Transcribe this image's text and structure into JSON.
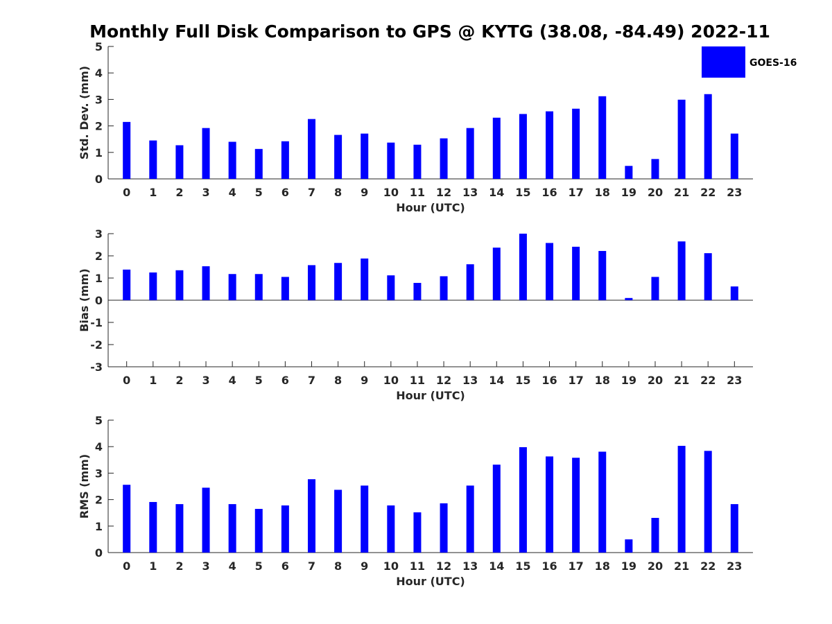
{
  "chart_data": {
    "type": "bar",
    "title": "Monthly Full Disk Comparison to GPS @ KYTG (38.08, -84.49) 2022-11",
    "legend": {
      "entries": [
        "GOES-16"
      ],
      "placement": "top-right"
    },
    "bar_color": "#0000ff",
    "categories": [
      "0",
      "1",
      "2",
      "3",
      "4",
      "5",
      "6",
      "7",
      "8",
      "9",
      "10",
      "11",
      "12",
      "13",
      "14",
      "15",
      "16",
      "17",
      "18",
      "19",
      "20",
      "21",
      "22",
      "23"
    ],
    "panels": [
      {
        "name": "std",
        "xlabel": "Hour (UTC)",
        "ylabel": "Std. Dev. (mm)",
        "ylim": [
          0,
          5
        ],
        "yticks": [
          "0",
          "1",
          "2",
          "3",
          "4",
          "5"
        ],
        "series": [
          {
            "name": "GOES-16",
            "values": [
              2.15,
              1.45,
              1.27,
              1.92,
              1.4,
              1.13,
              1.42,
              2.26,
              1.66,
              1.71,
              1.37,
              1.29,
              1.53,
              1.92,
              2.31,
              2.45,
              2.55,
              2.65,
              3.12,
              0.49,
              0.75,
              2.99,
              3.2,
              1.71
            ]
          }
        ]
      },
      {
        "name": "bias",
        "xlabel": "Hour (UTC)",
        "ylabel": "Bias (mm)",
        "ylim": [
          -3,
          3
        ],
        "yticks": [
          "-3",
          "-2",
          "-1",
          "0",
          "1",
          "2",
          "3"
        ],
        "series": [
          {
            "name": "GOES-16",
            "values": [
              1.38,
              1.25,
              1.35,
              1.53,
              1.18,
              1.18,
              1.05,
              1.58,
              1.68,
              1.88,
              1.12,
              0.78,
              1.08,
              1.62,
              2.37,
              3.0,
              2.58,
              2.41,
              2.22,
              0.1,
              1.05,
              2.65,
              2.12,
              0.62
            ]
          }
        ]
      },
      {
        "name": "rms",
        "xlabel": "Hour (UTC)",
        "ylabel": "RMS (mm)",
        "ylim": [
          0,
          5
        ],
        "yticks": [
          "0",
          "1",
          "2",
          "3",
          "4",
          "5"
        ],
        "series": [
          {
            "name": "GOES-16",
            "values": [
              2.56,
              1.91,
              1.83,
              2.45,
              1.83,
              1.65,
              1.78,
              2.77,
              2.37,
              2.53,
              1.78,
              1.52,
              1.86,
              2.53,
              3.32,
              3.98,
              3.63,
              3.58,
              3.81,
              0.5,
              1.31,
              4.03,
              3.84,
              1.83
            ]
          }
        ]
      }
    ]
  }
}
